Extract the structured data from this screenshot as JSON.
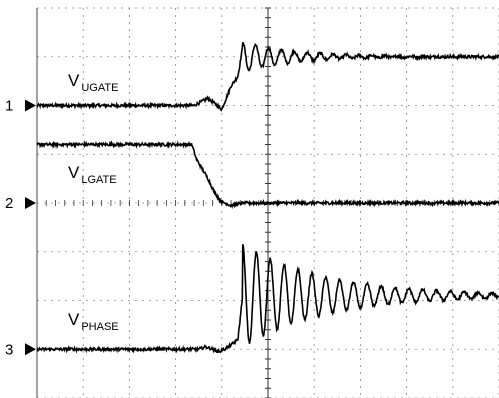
{
  "chart_data": {
    "type": "line",
    "title": "",
    "xlabel": "",
    "ylabel": "",
    "grid": true,
    "x_divisions": 10,
    "y_divisions": 8,
    "x_unit": "div",
    "y_unit": "div",
    "series": [
      {
        "name": "V",
        "subscript": "UGATE",
        "channel": "1",
        "ground_div": 6.0,
        "x": [
          0,
          3.4,
          3.7,
          4.0,
          4.2,
          4.35,
          4.45,
          4.6,
          4.75,
          4.9,
          5.05,
          5.2,
          5.35,
          5.5,
          5.65,
          5.8,
          5.95,
          6.1,
          6.25,
          10
        ],
        "values": [
          0,
          0,
          0.15,
          -0.08,
          0.4,
          0.6,
          1.2,
          1.2,
          1.2,
          1.2,
          1.2,
          1.2,
          1.2,
          1.2,
          1.2,
          1.2,
          1.2,
          1.2,
          1.0,
          1.0
        ],
        "ringing": {
          "start_div": 4.45,
          "period_div": 0.28,
          "amplitude_div": 0.32,
          "decay_div": 1.1,
          "settle_div": 1.0
        }
      },
      {
        "name": "V",
        "subscript": "LGATE",
        "channel": "2",
        "ground_div": 4.0,
        "x": [
          0,
          3.35,
          3.45,
          3.7,
          3.85,
          4.0,
          4.2,
          4.45,
          10
        ],
        "values": [
          1.2,
          1.2,
          0.9,
          0.5,
          0.2,
          0.02,
          -0.05,
          0.0,
          0.0
        ]
      },
      {
        "name": "V",
        "subscript": "PHASE",
        "channel": "3",
        "ground_div": 1.0,
        "x": [
          0,
          3.5,
          3.65,
          3.8,
          3.95,
          4.15,
          4.35,
          4.45,
          10
        ],
        "values": [
          0,
          0,
          0.05,
          0.0,
          -0.05,
          0.05,
          0.2,
          1.1,
          1.1
        ],
        "ringing": {
          "start_div": 4.45,
          "period_div": 0.3,
          "amplitude_div": 1.05,
          "decay_div": 1.8,
          "settle_div": 1.1
        }
      }
    ]
  },
  "style": {
    "trace_color": "#000000",
    "grid_color": "#8c8c8c",
    "background": "#ffffff"
  }
}
